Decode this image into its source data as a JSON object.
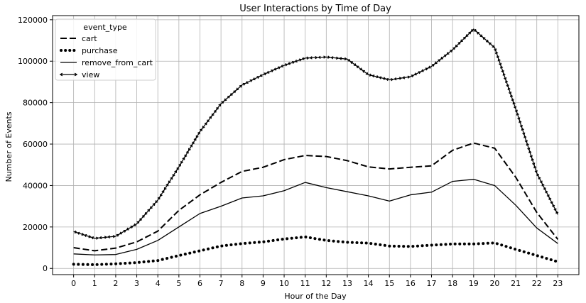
{
  "chart_data": {
    "type": "line",
    "title": "User Interactions by Time of Day",
    "xlabel": "Hour of the Day",
    "ylabel": "Number of Events",
    "x": [
      0,
      1,
      2,
      3,
      4,
      5,
      6,
      7,
      8,
      9,
      10,
      11,
      12,
      13,
      14,
      15,
      16,
      17,
      18,
      19,
      20,
      21,
      22,
      23
    ],
    "xticks": [
      "0",
      "1",
      "2",
      "3",
      "4",
      "5",
      "6",
      "7",
      "8",
      "9",
      "10",
      "11",
      "12",
      "13",
      "14",
      "15",
      "16",
      "17",
      "18",
      "19",
      "20",
      "21",
      "22",
      "23"
    ],
    "ylim": [
      -3000,
      122000
    ],
    "yticks": [
      0,
      20000,
      40000,
      60000,
      80000,
      100000,
      120000
    ],
    "ytick_labels": [
      "0",
      "20000",
      "40000",
      "60000",
      "80000",
      "100000",
      "120000"
    ],
    "grid": true,
    "legend": {
      "title": "event_type",
      "placement": "top-left"
    },
    "series": [
      {
        "name": "cart",
        "style": "dashed",
        "color": "#000000",
        "values": [
          10000,
          8500,
          9800,
          12800,
          18000,
          28000,
          35500,
          41500,
          46800,
          48800,
          52500,
          54500,
          54000,
          52000,
          49000,
          48000,
          48800,
          49500,
          57000,
          60500,
          58000,
          44000,
          27000,
          14000
        ]
      },
      {
        "name": "purchase",
        "style": "dotted",
        "color": "#000000",
        "values": [
          2000,
          1800,
          2200,
          2800,
          3800,
          6200,
          8500,
          10800,
          12000,
          12800,
          14200,
          15200,
          13500,
          12600,
          12200,
          10800,
          10600,
          11200,
          11800,
          11800,
          12300,
          9200,
          6200,
          3200
        ]
      },
      {
        "name": "remove_from_cart",
        "style": "solid",
        "color": "#000000",
        "values": [
          7000,
          6500,
          6700,
          9200,
          13500,
          20000,
          26500,
          30000,
          34000,
          35000,
          37500,
          41500,
          39000,
          37000,
          35000,
          32500,
          35500,
          36800,
          42000,
          43000,
          40000,
          30500,
          19500,
          12000
        ]
      },
      {
        "name": "view",
        "style": "arrow",
        "color": "#000000",
        "values": [
          17800,
          14500,
          15500,
          21500,
          33000,
          49000,
          66000,
          79500,
          88500,
          93500,
          98000,
          101500,
          102000,
          101000,
          93500,
          91000,
          92500,
          97500,
          105500,
          115500,
          106500,
          77000,
          46000,
          26000
        ]
      }
    ]
  }
}
